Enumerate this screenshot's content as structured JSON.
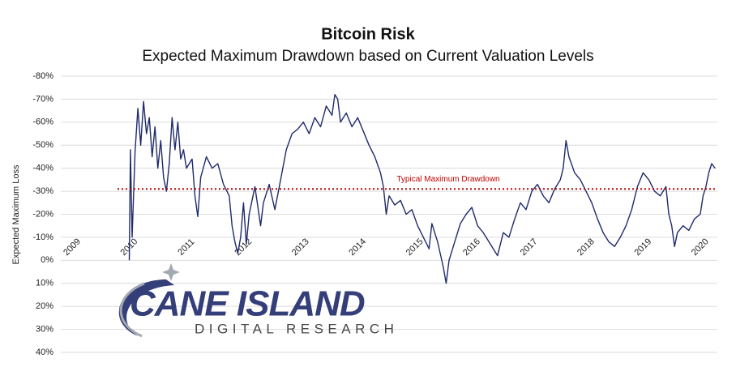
{
  "chart_data": {
    "type": "line",
    "title": "Bitcoin Risk",
    "subtitle": "Expected Maximum Drawdown based on Current Valuation Levels",
    "y_label": "Expected Maximum Loss",
    "ylim": [
      40,
      -80
    ],
    "yticks": [
      {
        "value": -80,
        "label": "-80%"
      },
      {
        "value": -70,
        "label": "-70%"
      },
      {
        "value": -60,
        "label": "-60%"
      },
      {
        "value": -50,
        "label": "-50%"
      },
      {
        "value": -40,
        "label": "-40%"
      },
      {
        "value": -30,
        "label": "-30%"
      },
      {
        "value": -20,
        "label": "-20%"
      },
      {
        "value": -10,
        "label": "-10%"
      },
      {
        "value": 0,
        "label": "0%"
      },
      {
        "value": 10,
        "label": "10%"
      },
      {
        "value": 20,
        "label": "20%"
      },
      {
        "value": 30,
        "label": "30%"
      },
      {
        "value": 40,
        "label": "40%"
      }
    ],
    "xlim": [
      2008.8,
      2020.3
    ],
    "xticks": [
      2009,
      2010,
      2011,
      2012,
      2013,
      2014,
      2015,
      2016,
      2017,
      2018,
      2019,
      2020
    ],
    "grid": true,
    "reference_line": {
      "value": -31,
      "label": "Typical Maximum Drawdown",
      "color": "#c00000"
    },
    "series": [
      {
        "name": "Expected Maximum Loss",
        "color": "#1f2a6b",
        "x": [
          2010.0,
          2010.02,
          2010.05,
          2010.1,
          2010.15,
          2010.2,
          2010.25,
          2010.3,
          2010.35,
          2010.4,
          2010.45,
          2010.5,
          2010.55,
          2010.6,
          2010.65,
          2010.7,
          2010.75,
          2010.8,
          2010.85,
          2010.9,
          2010.95,
          2011.0,
          2011.1,
          2011.15,
          2011.2,
          2011.25,
          2011.35,
          2011.45,
          2011.55,
          2011.65,
          2011.75,
          2011.8,
          2011.85,
          2011.9,
          2011.95,
          2012.0,
          2012.05,
          2012.1,
          2012.2,
          2012.3,
          2012.35,
          2012.45,
          2012.55,
          2012.65,
          2012.75,
          2012.85,
          2012.95,
          2013.05,
          2013.15,
          2013.25,
          2013.35,
          2013.45,
          2013.55,
          2013.6,
          2013.65,
          2013.7,
          2013.8,
          2013.9,
          2014.0,
          2014.1,
          2014.2,
          2014.3,
          2014.4,
          2014.45,
          2014.5,
          2014.55,
          2014.65,
          2014.75,
          2014.85,
          2014.95,
          2015.05,
          2015.15,
          2015.25,
          2015.3,
          2015.4,
          2015.5,
          2015.55,
          2015.6,
          2015.7,
          2015.8,
          2015.9,
          2016.0,
          2016.1,
          2016.2,
          2016.3,
          2016.4,
          2016.45,
          2016.55,
          2016.65,
          2016.75,
          2016.85,
          2016.95,
          2017.05,
          2017.15,
          2017.25,
          2017.35,
          2017.45,
          2017.55,
          2017.6,
          2017.65,
          2017.7,
          2017.8,
          2017.9,
          2018.0,
          2018.1,
          2018.2,
          2018.3,
          2018.4,
          2018.5,
          2018.6,
          2018.7,
          2018.8,
          2018.9,
          2019.0,
          2019.1,
          2019.2,
          2019.3,
          2019.4,
          2019.45,
          2019.5,
          2019.55,
          2019.6,
          2019.7,
          2019.8,
          2019.9,
          2020.0,
          2020.05,
          2020.1,
          2020.15,
          2020.2,
          2020.26
        ],
        "values": [
          0,
          -48,
          -10,
          -47,
          -66,
          -50,
          -69,
          -55,
          -62,
          -45,
          -58,
          -40,
          -52,
          -36,
          -30,
          -42,
          -62,
          -48,
          -60,
          -44,
          -48,
          -40,
          -44,
          -28,
          -19,
          -36,
          -45,
          -40,
          -42,
          -33,
          -28,
          -15,
          -8,
          -3,
          -10,
          -25,
          -7,
          -20,
          -32,
          -15,
          -25,
          -33,
          -22,
          -35,
          -48,
          -55,
          -57,
          -60,
          -55,
          -62,
          -58,
          -67,
          -63,
          -72,
          -70,
          -60,
          -64,
          -58,
          -62,
          -56,
          -50,
          -45,
          -38,
          -32,
          -20,
          -28,
          -24,
          -26,
          -20,
          -22,
          -15,
          -10,
          -5,
          -16,
          -8,
          3,
          10,
          0,
          -8,
          -16,
          -20,
          -23,
          -15,
          -12,
          -8,
          -4,
          -2,
          -12,
          -10,
          -18,
          -25,
          -22,
          -30,
          -33,
          -28,
          -25,
          -31,
          -35,
          -40,
          -52,
          -45,
          -38,
          -35,
          -30,
          -25,
          -18,
          -12,
          -8,
          -6,
          -10,
          -15,
          -22,
          -32,
          -38,
          -35,
          -30,
          -28,
          -32,
          -20,
          -15,
          -6,
          -12,
          -15,
          -13,
          -18,
          -20,
          -28,
          -32,
          -38,
          -42,
          -40
        ]
      }
    ],
    "logo": {
      "name": "CANE ISLAND",
      "tagline": "DIGITAL RESEARCH"
    }
  }
}
